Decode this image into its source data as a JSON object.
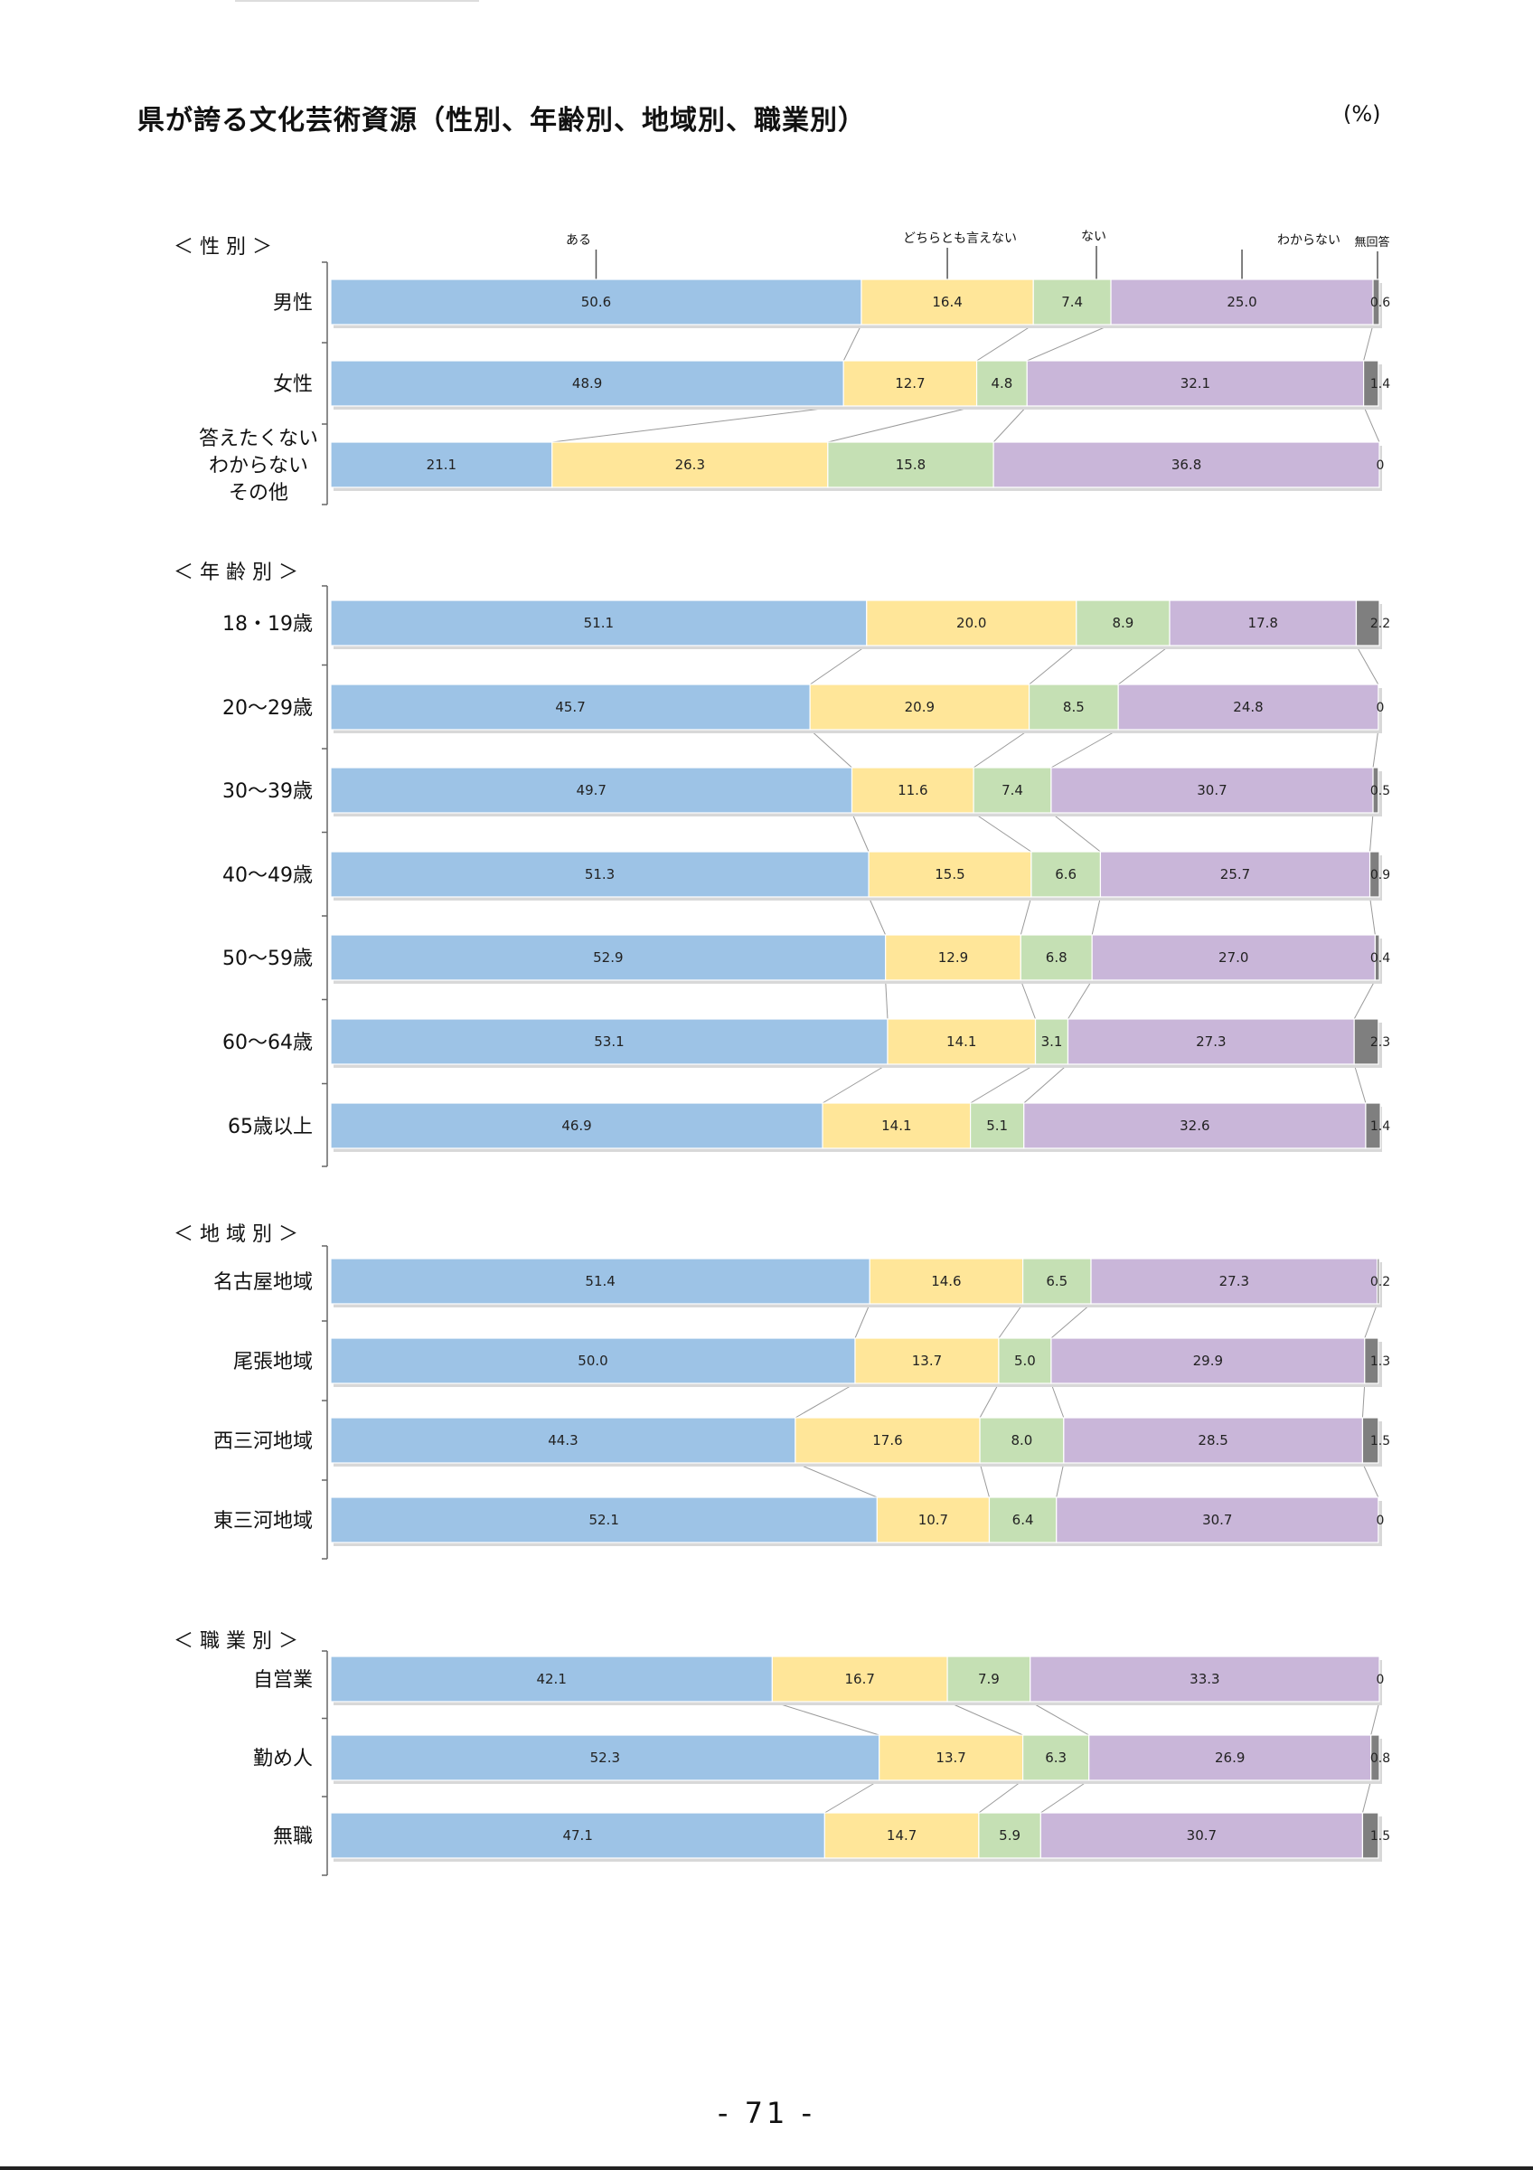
{
  "page": {
    "title": "県が誇る文化芸術資源（性別、年齢別、地域別、職業別）",
    "unit": "(%)",
    "page_number": "- 71 -"
  },
  "colors": {
    "segments": [
      "#9dc3e6",
      "#ffe699",
      "#c5e0b4",
      "#c9b6d9",
      "#7f7f7f"
    ],
    "connector": "#9a9a9a",
    "axis": "#666666"
  },
  "chart_data": {
    "type": "bar",
    "orientation": "horizontal",
    "stacked": "100%",
    "legend": [
      "ある",
      "どちらとも言えない",
      "ない",
      "わからない",
      "無回答"
    ],
    "groups": [
      {
        "title": "＜ 性 別 ＞",
        "rows": [
          {
            "label": [
              "男性"
            ],
            "values": [
              50.6,
              16.4,
              7.4,
              25.0,
              0.6
            ],
            "labels": [
              "50.6",
              "16.4",
              "7.4",
              "25.0",
              "0.6"
            ]
          },
          {
            "label": [
              "女性"
            ],
            "values": [
              48.9,
              12.7,
              4.8,
              32.1,
              1.4
            ],
            "labels": [
              "48.9",
              "12.7",
              "4.8",
              "32.1",
              "1.4"
            ]
          },
          {
            "label": [
              "答えたくない",
              "わからない",
              "その他"
            ],
            "values": [
              21.1,
              26.3,
              15.8,
              36.8,
              0
            ],
            "labels": [
              "21.1",
              "26.3",
              "15.8",
              "36.8",
              "0"
            ]
          }
        ]
      },
      {
        "title": "＜ 年 齢 別 ＞",
        "rows": [
          {
            "label": [
              "18・19歳"
            ],
            "values": [
              51.1,
              20.0,
              8.9,
              17.8,
              2.2
            ],
            "labels": [
              "51.1",
              "20.0",
              "8.9",
              "17.8",
              "2.2"
            ]
          },
          {
            "label": [
              "20～29歳"
            ],
            "values": [
              45.7,
              20.9,
              8.5,
              24.8,
              0
            ],
            "labels": [
              "45.7",
              "20.9",
              "8.5",
              "24.8",
              "0"
            ]
          },
          {
            "label": [
              "30～39歳"
            ],
            "values": [
              49.7,
              11.6,
              7.4,
              30.7,
              0.5
            ],
            "labels": [
              "49.7",
              "11.6",
              "7.4",
              "30.7",
              "0.5"
            ]
          },
          {
            "label": [
              "40～49歳"
            ],
            "values": [
              51.3,
              15.5,
              6.6,
              25.7,
              0.9
            ],
            "labels": [
              "51.3",
              "15.5",
              "6.6",
              "25.7",
              "0.9"
            ]
          },
          {
            "label": [
              "50～59歳"
            ],
            "values": [
              52.9,
              12.9,
              6.8,
              27.0,
              0.4
            ],
            "labels": [
              "52.9",
              "12.9",
              "6.8",
              "27.0",
              "0.4"
            ]
          },
          {
            "label": [
              "60～64歳"
            ],
            "values": [
              53.1,
              14.1,
              3.1,
              27.3,
              2.3
            ],
            "labels": [
              "53.1",
              "14.1",
              "3.1",
              "27.3",
              "2.3"
            ]
          },
          {
            "label": [
              "65歳以上"
            ],
            "values": [
              46.9,
              14.1,
              5.1,
              32.6,
              1.4
            ],
            "labels": [
              "46.9",
              "14.1",
              "5.1",
              "32.6",
              "1.4"
            ]
          }
        ]
      },
      {
        "title": "＜ 地 域 別 ＞",
        "rows": [
          {
            "label": [
              "名古屋地域"
            ],
            "values": [
              51.4,
              14.6,
              6.5,
              27.3,
              0.2
            ],
            "labels": [
              "51.4",
              "14.6",
              "6.5",
              "27.3",
              "0.2"
            ]
          },
          {
            "label": [
              "尾張地域"
            ],
            "values": [
              50.0,
              13.7,
              5.0,
              29.9,
              1.3
            ],
            "labels": [
              "50.0",
              "13.7",
              "5.0",
              "29.9",
              "1.3"
            ]
          },
          {
            "label": [
              "西三河地域"
            ],
            "values": [
              44.3,
              17.6,
              8.0,
              28.5,
              1.5
            ],
            "labels": [
              "44.3",
              "17.6",
              "8.0",
              "28.5",
              "1.5"
            ]
          },
          {
            "label": [
              "東三河地域"
            ],
            "values": [
              52.1,
              10.7,
              6.4,
              30.7,
              0
            ],
            "labels": [
              "52.1",
              "10.7",
              "6.4",
              "30.7",
              "0"
            ]
          }
        ]
      },
      {
        "title": "＜ 職 業 別 ＞",
        "rows": [
          {
            "label": [
              "自営業"
            ],
            "values": [
              42.1,
              16.7,
              7.9,
              33.3,
              0
            ],
            "labels": [
              "42.1",
              "16.7",
              "7.9",
              "33.3",
              "0"
            ]
          },
          {
            "label": [
              "勤め人"
            ],
            "values": [
              52.3,
              13.7,
              6.3,
              26.9,
              0.8
            ],
            "labels": [
              "52.3",
              "13.7",
              "6.3",
              "26.9",
              "0.8"
            ]
          },
          {
            "label": [
              "無職"
            ],
            "values": [
              47.1,
              14.7,
              5.9,
              30.7,
              1.5
            ],
            "labels": [
              "47.1",
              "14.7",
              "5.9",
              "30.7",
              "1.5"
            ]
          }
        ]
      }
    ]
  }
}
